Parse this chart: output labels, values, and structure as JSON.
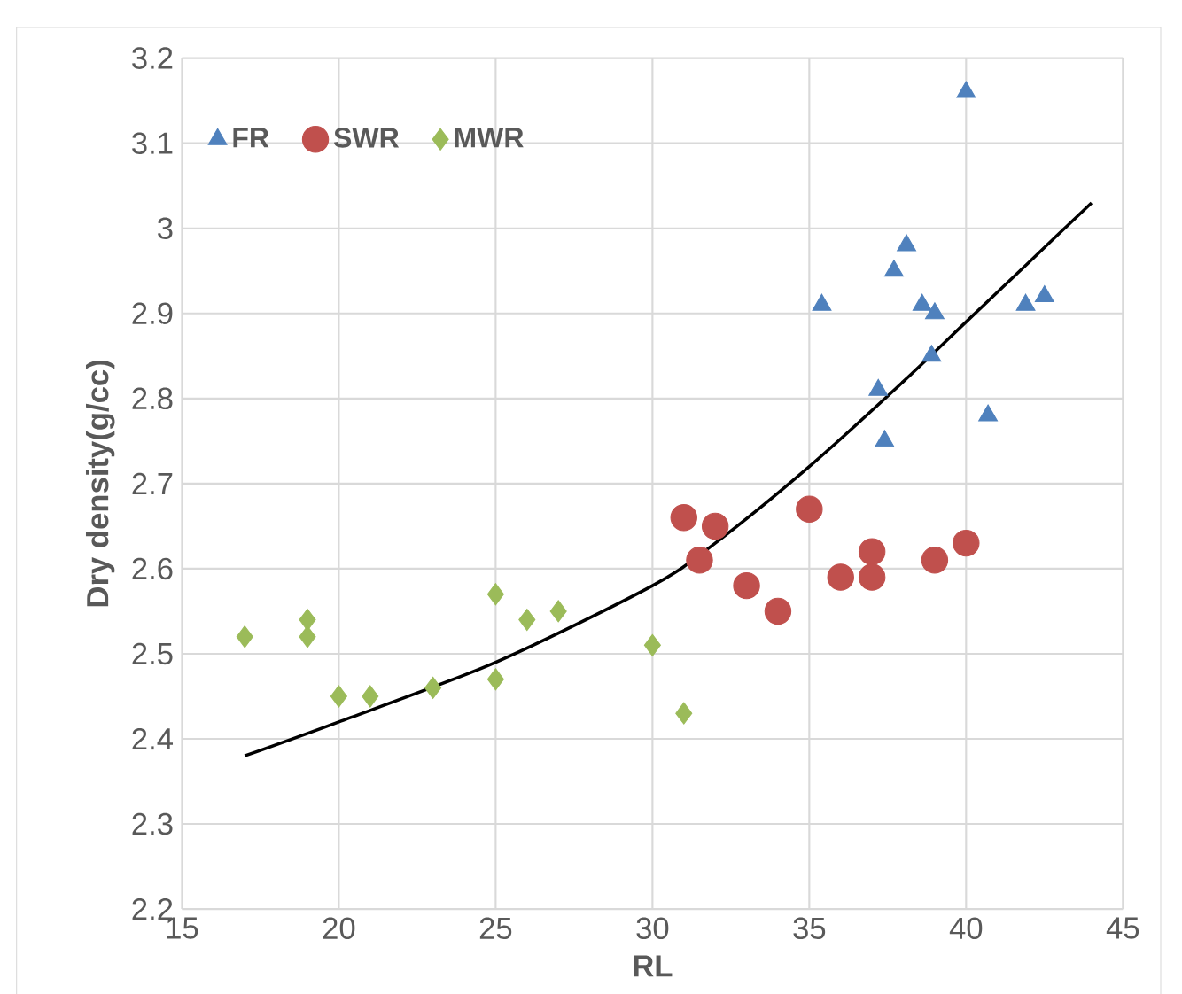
{
  "chart_data": {
    "type": "scatter",
    "xlabel": "RL",
    "ylabel": "Dry density(g/cc)",
    "xlim": [
      15,
      45
    ],
    "xticks": [
      15,
      20,
      25,
      30,
      35,
      40,
      45
    ],
    "ylim": [
      2.2,
      3.2
    ],
    "yticks": [
      2.2,
      2.3,
      2.4,
      2.5,
      2.6,
      2.7,
      2.8,
      2.9,
      3,
      3.1,
      3.2
    ],
    "grid": true,
    "legend": "top left",
    "series": [
      {
        "name": "FR",
        "color": "#4f81bd",
        "marker": "triangle",
        "x": [
          35.4,
          37.2,
          37.4,
          37.7,
          38.1,
          38.6,
          38.9,
          39.0,
          40,
          40.7,
          41.9,
          42.5
        ],
        "values": [
          2.91,
          2.81,
          2.75,
          2.95,
          2.98,
          2.91,
          2.85,
          2.9,
          3.16,
          2.78,
          2.91,
          2.92
        ]
      },
      {
        "name": "SWR",
        "color": "#c0504d",
        "marker": "circle",
        "x": [
          31,
          31.5,
          32,
          33,
          34,
          35,
          36,
          37,
          37,
          39,
          40
        ],
        "values": [
          2.66,
          2.61,
          2.65,
          2.58,
          2.55,
          2.67,
          2.59,
          2.62,
          2.59,
          2.61,
          2.63
        ]
      },
      {
        "name": "MWR",
        "color": "#9bbb59",
        "marker": "diamond",
        "x": [
          17,
          19,
          19,
          20,
          21,
          23,
          25,
          25,
          26,
          27,
          30,
          31
        ],
        "values": [
          2.52,
          2.54,
          2.52,
          2.45,
          2.45,
          2.46,
          2.57,
          2.47,
          2.54,
          2.55,
          2.51,
          2.43
        ]
      },
      {
        "type": "line",
        "color": "#000000",
        "marker": "none",
        "x": [
          17,
          20,
          25,
          30,
          32,
          35,
          38,
          40,
          42,
          44
        ],
        "values": [
          2.38,
          2.42,
          2.49,
          2.58,
          2.63,
          2.72,
          2.82,
          2.89,
          2.96,
          3.03
        ]
      }
    ]
  }
}
